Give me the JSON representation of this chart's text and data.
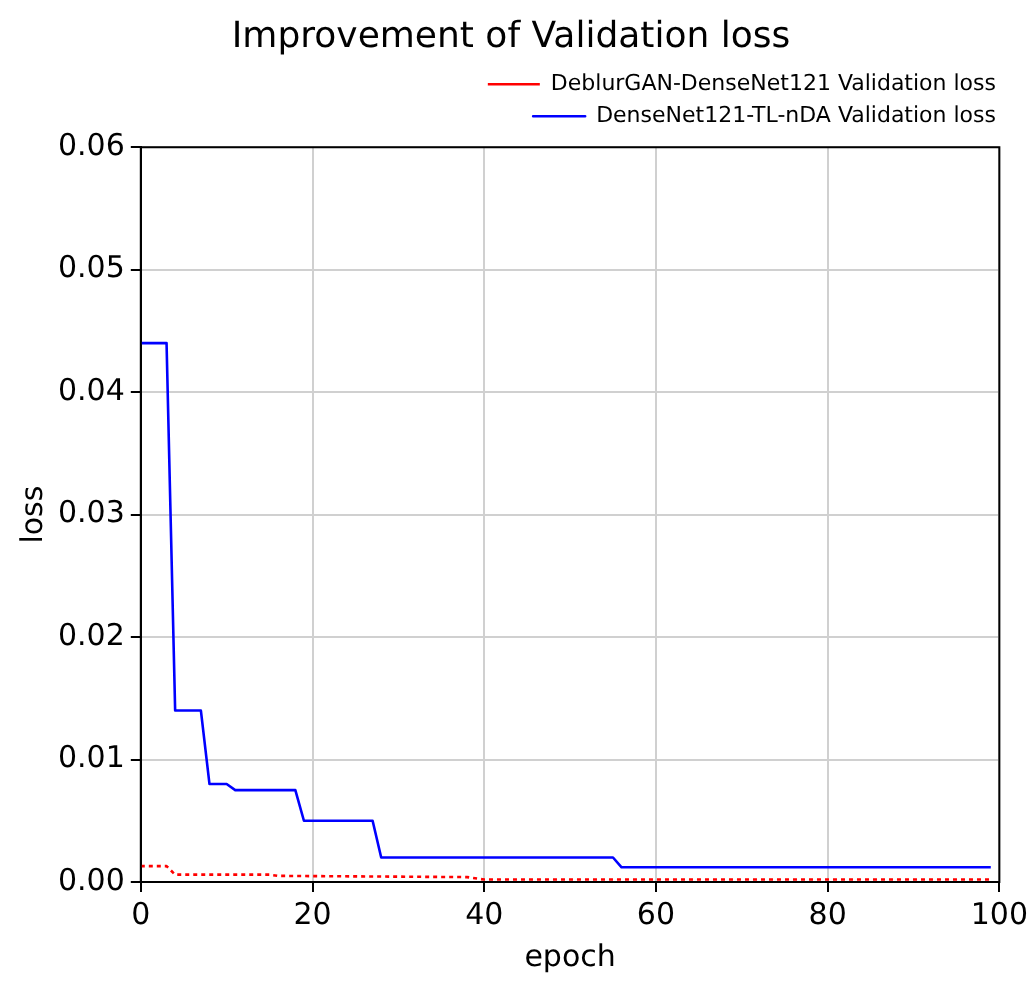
{
  "chart_data": {
    "type": "line",
    "title": "Improvement of Validation loss",
    "xlabel": "epoch",
    "ylabel": "loss",
    "xlim": [
      0,
      100
    ],
    "xticks": [
      0,
      20,
      40,
      60,
      80,
      100
    ],
    "ylim": [
      0,
      0.06
    ],
    "yticks": [
      {
        "value": 0,
        "label": "0.00"
      },
      {
        "value": 0.01,
        "label": "0.01"
      },
      {
        "value": 0.02,
        "label": "0.02"
      },
      {
        "value": 0.03,
        "label": "0.03"
      },
      {
        "value": 0.04,
        "label": "0.04"
      },
      {
        "value": 0.05,
        "label": "0.05"
      },
      {
        "value": 0.06,
        "label": "0.06"
      }
    ],
    "grid": true,
    "legend": "top right",
    "marker": "none",
    "series": [
      {
        "name": "DeblurGAN-DenseNet121 Validation loss",
        "color": "#ff0000",
        "line_style": "dotted",
        "x": [
          0,
          3,
          4,
          15,
          16,
          38,
          40,
          99
        ],
        "values": [
          0.0013,
          0.0013,
          0.0006,
          0.0006,
          0.0005,
          0.0004,
          0.0002,
          0.0002
        ]
      },
      {
        "name": "DenseNet121-TL-nDA Validation loss",
        "color": "#0000ff",
        "line_style": "solid",
        "x": [
          0,
          3,
          4,
          7,
          8,
          10,
          11,
          18,
          19,
          27,
          28,
          55,
          56,
          99
        ],
        "values": [
          0.044,
          0.044,
          0.014,
          0.014,
          0.008,
          0.008,
          0.0075,
          0.0075,
          0.005,
          0.005,
          0.002,
          0.002,
          0.0012,
          0.0012
        ]
      }
    ]
  }
}
